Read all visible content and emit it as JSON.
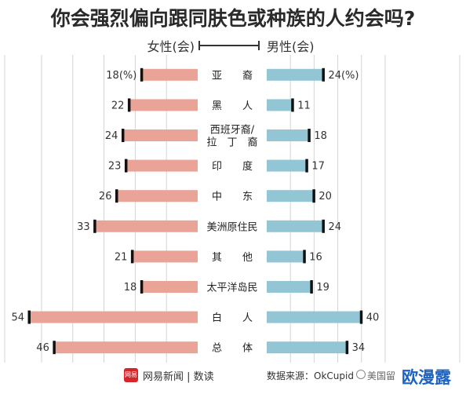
{
  "title": "你会强烈偏向跟同肤色或种族的人约会吗?",
  "legend": {
    "female": "女性(会)",
    "male": "男性(会)"
  },
  "colors": {
    "female": "#e9a397",
    "male": "#93c6d4",
    "marker": "#111111",
    "grid": "#d4d4d4"
  },
  "chart_data": {
    "type": "bar",
    "categories": [
      "亚　　裔",
      "黑　　人",
      "西班牙裔/拉　丁　裔",
      "印　　度",
      "中　　东",
      "美洲原住民",
      "其　　他",
      "太平洋岛民",
      "白　　人",
      "总　　体"
    ],
    "series": [
      {
        "name": "女性(会)",
        "values": [
          18,
          22,
          24,
          23,
          26,
          33,
          21,
          18,
          54,
          46
        ],
        "labels": [
          "18(%)",
          "22",
          "24",
          "23",
          "26",
          "33",
          "21",
          "18",
          "54",
          "46"
        ]
      },
      {
        "name": "男性(会)",
        "values": [
          24,
          11,
          18,
          17,
          20,
          24,
          16,
          19,
          40,
          34
        ],
        "labels": [
          "24(%)",
          "11",
          "18",
          "17",
          "20",
          "24",
          "16",
          "19",
          "40",
          "34"
        ]
      }
    ],
    "ylim": [
      0,
      54
    ],
    "grid": true
  },
  "footer": {
    "brand_logo_text": "网易",
    "brand": "网易新闻 | 数读",
    "source": "数据来源：OkCupid",
    "watermark_small": "美国留",
    "watermark_big": "欧漫露"
  }
}
